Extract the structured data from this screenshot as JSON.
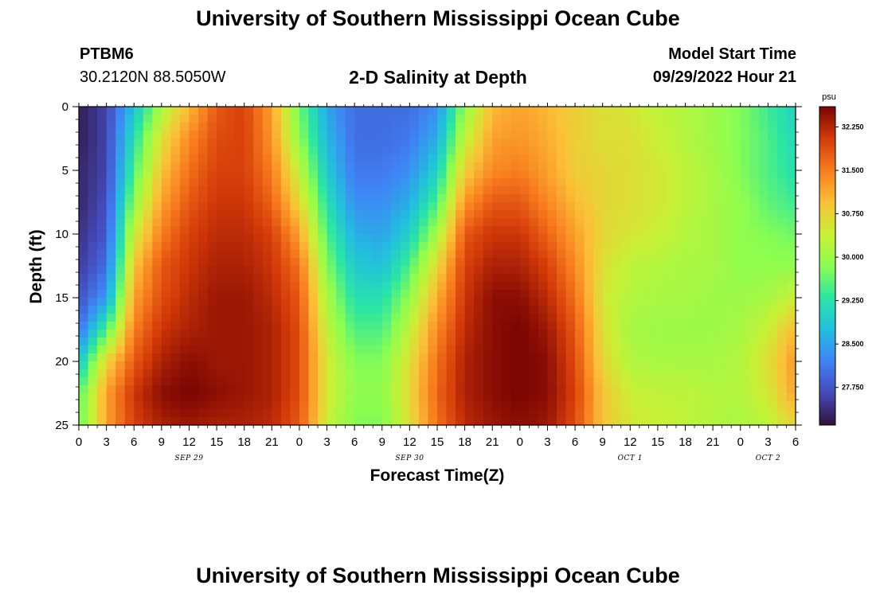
{
  "header": {
    "title": "University of Southern Mississippi Ocean Cube",
    "station": "PTBM6",
    "coords": "30.2120N  88.5050W",
    "subtitle": "2-D Salinity at Depth",
    "start_label": "Model Start Time",
    "start_value": "09/29/2022 Hour 21",
    "footer_title": "University of Southern Mississippi Ocean Cube"
  },
  "chart_data": {
    "type": "heatmap",
    "title": "2-D Salinity at Depth",
    "xlabel": "Forecast Time(Z)",
    "ylabel": "Depth (ft)",
    "x_unit": "hours since 09/29/2022 00Z",
    "x_range": [
      0,
      78
    ],
    "x_ticks": [
      0,
      3,
      6,
      9,
      12,
      15,
      18,
      21,
      24,
      27,
      30,
      33,
      36,
      39,
      42,
      45,
      48,
      51,
      54,
      57,
      60,
      63,
      66,
      69,
      72,
      75,
      78
    ],
    "x_tick_labels": [
      "0",
      "3",
      "6",
      "9",
      "12",
      "15",
      "18",
      "21",
      "0",
      "3",
      "6",
      "9",
      "12",
      "15",
      "18",
      "21",
      "0",
      "3",
      "6",
      "9",
      "12",
      "15",
      "18",
      "21",
      "0",
      "3",
      "6"
    ],
    "date_labels": [
      {
        "hour": 12,
        "label": "SEP 29"
      },
      {
        "hour": 36,
        "label": "SEP 30"
      },
      {
        "hour": 60,
        "label": "OCT 1"
      },
      {
        "hour": 75,
        "label": "OCT 2"
      }
    ],
    "y_range": [
      0,
      25
    ],
    "y_reversed": true,
    "y_ticks": [
      0,
      5,
      10,
      15,
      20,
      25
    ],
    "colorbar": {
      "unit": "psu",
      "min": 27.1,
      "max": 32.6,
      "ticks": [
        32.25,
        31.5,
        30.75,
        30.0,
        29.25,
        28.5,
        27.75
      ],
      "tick_labels": [
        "32.250",
        "31.500",
        "30.750",
        "30.000",
        "29.250",
        "28.500",
        "27.750"
      ]
    },
    "grid": {
      "x_hours": [
        0,
        3,
        6,
        9,
        12,
        15,
        18,
        21,
        24,
        27,
        30,
        33,
        36,
        39,
        42,
        45,
        48,
        51,
        54,
        57,
        60,
        63,
        66,
        69,
        72,
        75,
        78
      ],
      "depths_ft": [
        0,
        2.5,
        5,
        7.5,
        10,
        12.5,
        15,
        17.5,
        20,
        22.5,
        25
      ],
      "salinity_psu": [
        [
          27.2,
          27.6,
          28.8,
          30.1,
          31.0,
          31.8,
          32.0,
          31.2,
          29.7,
          28.5,
          28.0,
          28.0,
          28.0,
          28.3,
          29.9,
          31.0,
          31.2,
          31.0,
          30.8,
          30.6,
          30.5,
          30.3,
          30.2,
          30.0,
          29.8,
          29.4,
          29.0
        ],
        [
          27.2,
          27.6,
          29.2,
          30.6,
          31.4,
          31.9,
          32.0,
          31.3,
          29.9,
          28.7,
          28.0,
          28.0,
          28.1,
          28.6,
          30.3,
          31.2,
          31.3,
          31.1,
          30.8,
          30.6,
          30.6,
          30.4,
          30.2,
          30.0,
          29.8,
          29.5,
          29.1
        ],
        [
          27.3,
          27.6,
          29.5,
          30.9,
          31.6,
          32.0,
          32.0,
          31.5,
          30.3,
          28.9,
          28.1,
          28.1,
          28.3,
          29.0,
          30.8,
          31.4,
          31.5,
          31.2,
          30.8,
          30.7,
          30.6,
          30.5,
          30.3,
          30.1,
          29.8,
          29.5,
          29.2
        ],
        [
          27.3,
          27.7,
          29.9,
          31.2,
          31.8,
          32.1,
          32.1,
          31.7,
          30.7,
          29.2,
          28.3,
          28.3,
          28.6,
          29.5,
          31.3,
          31.8,
          31.8,
          31.4,
          31.0,
          30.7,
          30.6,
          30.5,
          30.3,
          30.1,
          29.9,
          29.6,
          29.4
        ],
        [
          27.4,
          27.8,
          30.4,
          31.5,
          32.0,
          32.2,
          32.2,
          32.0,
          31.2,
          29.5,
          28.6,
          28.5,
          29.0,
          30.1,
          31.8,
          32.1,
          32.1,
          31.7,
          31.2,
          30.7,
          30.5,
          30.4,
          30.2,
          30.1,
          29.9,
          29.8,
          29.7
        ],
        [
          27.5,
          28.0,
          30.9,
          31.8,
          32.1,
          32.3,
          32.3,
          32.1,
          31.6,
          29.8,
          28.9,
          28.8,
          29.5,
          30.7,
          32.0,
          32.3,
          32.3,
          32.0,
          31.4,
          30.6,
          30.3,
          30.2,
          30.1,
          30.1,
          29.9,
          29.9,
          29.9
        ],
        [
          27.7,
          28.4,
          31.2,
          31.9,
          32.2,
          32.4,
          32.4,
          32.2,
          31.8,
          30.1,
          29.2,
          29.2,
          29.9,
          31.1,
          32.1,
          32.5,
          32.5,
          32.2,
          31.6,
          30.5,
          30.2,
          30.1,
          30.1,
          30.0,
          30.0,
          30.1,
          30.4
        ],
        [
          28.0,
          29.5,
          31.5,
          32.1,
          32.3,
          32.4,
          32.4,
          32.3,
          31.9,
          30.3,
          29.5,
          29.5,
          30.3,
          31.4,
          32.2,
          32.5,
          32.6,
          32.4,
          31.8,
          30.6,
          30.1,
          30.0,
          30.0,
          30.0,
          30.1,
          30.4,
          31.0
        ],
        [
          28.8,
          30.7,
          31.8,
          32.3,
          32.5,
          32.4,
          32.4,
          32.3,
          31.9,
          30.5,
          29.8,
          29.8,
          30.6,
          31.6,
          32.3,
          32.5,
          32.6,
          32.5,
          31.9,
          30.7,
          30.2,
          30.1,
          30.1,
          30.1,
          30.2,
          30.6,
          31.3
        ],
        [
          29.5,
          31.2,
          32.1,
          32.5,
          32.6,
          32.5,
          32.4,
          32.3,
          31.9,
          30.5,
          29.9,
          29.9,
          30.7,
          31.7,
          32.3,
          32.5,
          32.6,
          32.5,
          32.0,
          30.9,
          30.4,
          30.3,
          30.3,
          30.2,
          30.2,
          30.5,
          31.2
        ],
        [
          29.6,
          31.2,
          32.0,
          32.3,
          32.4,
          32.3,
          32.3,
          32.2,
          31.8,
          30.4,
          29.8,
          29.8,
          30.6,
          31.6,
          32.2,
          32.4,
          32.5,
          32.4,
          31.9,
          30.9,
          30.5,
          30.4,
          30.3,
          30.2,
          30.1,
          30.3,
          30.7
        ]
      ]
    }
  }
}
